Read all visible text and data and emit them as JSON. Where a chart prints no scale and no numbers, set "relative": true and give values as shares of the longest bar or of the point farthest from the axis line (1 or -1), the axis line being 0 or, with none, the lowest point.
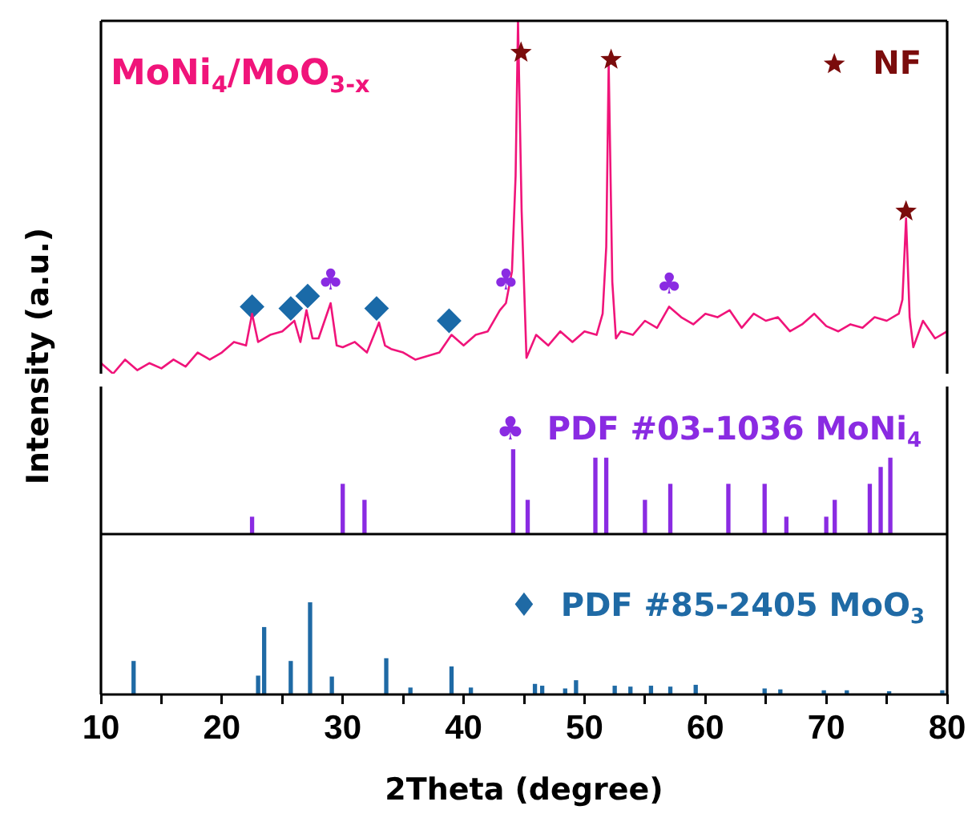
{
  "chart_data": [
    {
      "type": "line",
      "ylabel": "Intensity (a.u.)",
      "relative": true,
      "xlim": [
        10,
        80
      ],
      "tick_labels": false,
      "grid": false,
      "legend": "top right",
      "annotations": [
        {
          "text": "♣",
          "x": 29,
          "y": 0.2
        },
        {
          "text": "♣",
          "x": 43.5,
          "y": 0.2
        },
        {
          "text": "♣",
          "x": 57,
          "y": 0.19
        }
      ],
      "series": [
        {
          "name": "MoNi$_{4}$/MoO$_{3-x}$",
          "color": "#f0147a",
          "x": [
            10,
            11,
            12,
            13,
            14,
            15,
            16,
            17,
            18,
            19,
            20,
            21,
            22,
            22.5,
            23,
            24,
            25,
            26,
            26.5,
            27,
            27.5,
            28,
            29,
            29.5,
            30,
            31,
            32,
            33,
            33.5,
            34,
            35,
            36,
            37,
            38,
            39,
            40,
            41,
            42,
            43,
            43.5,
            44,
            44.3,
            44.5,
            44.8,
            45.2,
            46,
            47,
            48,
            49,
            50,
            51,
            51.5,
            51.8,
            52,
            52.3,
            52.6,
            53,
            54,
            55,
            56,
            57,
            58,
            59,
            60,
            61,
            62,
            63,
            64,
            65,
            66,
            67,
            68,
            69,
            70,
            71,
            72,
            73,
            74,
            75,
            76,
            76.3,
            76.6,
            76.9,
            77.2,
            78,
            79,
            80
          ],
          "values": [
            0.03,
            0,
            0.04,
            0.01,
            0.03,
            0.015,
            0.04,
            0.02,
            0.06,
            0.04,
            0.06,
            0.09,
            0.08,
            0.17,
            0.09,
            0.11,
            0.12,
            0.15,
            0.09,
            0.18,
            0.1,
            0.1,
            0.2,
            0.08,
            0.075,
            0.09,
            0.06,
            0.145,
            0.08,
            0.07,
            0.06,
            0.04,
            0.05,
            0.06,
            0.11,
            0.08,
            0.11,
            0.12,
            0.18,
            0.2,
            0.29,
            0.56,
            1,
            0.46,
            0.045,
            0.11,
            0.08,
            0.12,
            0.09,
            0.12,
            0.11,
            0.17,
            0.36,
            0.88,
            0.26,
            0.1,
            0.12,
            0.11,
            0.15,
            0.13,
            0.19,
            0.16,
            0.14,
            0.17,
            0.16,
            0.18,
            0.13,
            0.17,
            0.15,
            0.16,
            0.12,
            0.14,
            0.17,
            0.135,
            0.12,
            0.14,
            0.13,
            0.16,
            0.15,
            0.17,
            0.21,
            0.44,
            0.16,
            0.075,
            0.15,
            0.1,
            0.12
          ]
        },
        {
          "type": "scatter",
          "name": "NF",
          "marker": "star",
          "color": "#7b0c0c",
          "x": [
            44.75,
            52.2,
            76.6
          ],
          "values": [
            0.91,
            0.89,
            0.46
          ]
        },
        {
          "type": "scatter",
          "marker": "diamond",
          "color": "#1a6aa8",
          "x": [
            22.5,
            25.7,
            27.1,
            32.8,
            38.8
          ],
          "values": [
            0.19,
            0.185,
            0.22,
            0.185,
            0.15
          ]
        }
      ]
    },
    {
      "type": "bar",
      "relative": true,
      "xlim": [
        10,
        80
      ],
      "tick_labels": false,
      "grid": false,
      "legend": "top right",
      "series": [
        {
          "name": "♣  PDF #03-1036 MoNi$_{4}$",
          "color": "#8a2be2",
          "x": [
            22.5,
            30.0,
            31.8,
            44.1,
            45.3,
            50.9,
            51.8,
            55.0,
            57.1,
            61.9,
            64.9,
            66.7,
            70.0,
            70.7,
            73.6,
            74.5,
            75.3
          ],
          "values": [
            0.2,
            0.59,
            0.4,
            1,
            0.4,
            0.9,
            0.9,
            0.4,
            0.59,
            0.59,
            0.59,
            0.2,
            0.2,
            0.4,
            0.59,
            0.79,
            0.9
          ]
        }
      ]
    },
    {
      "type": "bar",
      "relative": true,
      "xlabel": "2Theta (degree)",
      "xlim": [
        10,
        80
      ],
      "tick_labels": "x",
      "grid": false,
      "legend": "right",
      "xticks": [
        10,
        {
          "value": 15,
          "label": null
        },
        20,
        {
          "value": 25,
          "label": null
        },
        30,
        {
          "value": 35,
          "label": null
        },
        40,
        {
          "value": 45,
          "label": null
        },
        50,
        {
          "value": 55,
          "label": null
        },
        60,
        {
          "value": 65,
          "label": null
        },
        70,
        {
          "value": 75,
          "label": null
        },
        80
      ],
      "series": [
        {
          "name": "♦  PDF #85-2405 MoO$_{3}$",
          "color": "#1f6aa5",
          "x": [
            12.7,
            23.0,
            23.5,
            25.7,
            27.3,
            29.1,
            33.6,
            35.6,
            39.0,
            40.6,
            45.9,
            46.5,
            48.4,
            49.3,
            52.5,
            53.8,
            55.5,
            57.1,
            59.2,
            64.9,
            66.2,
            69.8,
            71.7,
            75.2,
            79.6
          ],
          "values": [
            0.36,
            0.2,
            0.73,
            0.36,
            1,
            0.19,
            0.39,
            0.07,
            0.3,
            0.07,
            0.11,
            0.09,
            0.06,
            0.15,
            0.09,
            0.08,
            0.09,
            0.08,
            0.1,
            0.06,
            0.05,
            0.04,
            0.04,
            0.03,
            0.04
          ]
        }
      ]
    }
  ]
}
